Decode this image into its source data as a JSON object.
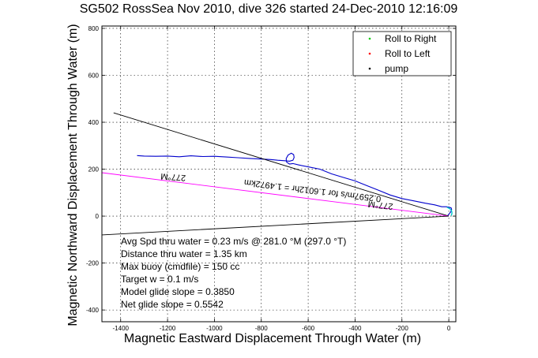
{
  "chart_data": {
    "type": "line",
    "title": "SG502 RossSea Nov 2010, dive 326 started 24-Dec-2010 12:16:09",
    "xlabel": "Magnetic Eastward Displacement Through Water (m)",
    "ylabel": "Magnetic Northward Displacement Through Water (m)",
    "xlim": [
      -1480,
      30
    ],
    "ylim": [
      -450,
      810
    ],
    "xticks": [
      -1400,
      -1200,
      -1000,
      -800,
      -600,
      -400,
      -200,
      0
    ],
    "yticks": [
      -400,
      -200,
      0,
      200,
      400,
      600,
      800
    ],
    "grid": true,
    "legend_position": "top-right",
    "legend": [
      {
        "name": "Roll to Right",
        "color": "#00cc00"
      },
      {
        "name": "Roll to Left",
        "color": "#ff0000"
      },
      {
        "name": "pump",
        "color": "#000000"
      }
    ],
    "series": [
      {
        "color": "#0000cc",
        "x": [
          -1330,
          -1300,
          -1250,
          -1200,
          -1150,
          -1100,
          -1050,
          -1000,
          -950,
          -900,
          -850,
          -800,
          -760,
          -730,
          -700,
          -680,
          -665,
          -660,
          -662,
          -672,
          -686,
          -694,
          -692,
          -680,
          -665,
          -640,
          -600,
          -550,
          -500,
          -450,
          -400,
          -350,
          -300,
          -250,
          -200,
          -150,
          -100,
          -60,
          -30,
          -10,
          2,
          10,
          12,
          8,
          0,
          -5
        ],
        "y": [
          258,
          256,
          255,
          256,
          253,
          257,
          254,
          255,
          252,
          249,
          246,
          243,
          241,
          238,
          236,
          234,
          238,
          250,
          262,
          268,
          260,
          245,
          230,
          222,
          224,
          218,
          210,
          200,
          180,
          165,
          150,
          130,
          110,
          90,
          75,
          65,
          55,
          48,
          40,
          40,
          38,
          35,
          28,
          18,
          8,
          2
        ]
      },
      {
        "color": "#000000",
        "x": [
          -1430,
          0
        ],
        "y": [
          440,
          0
        ]
      },
      {
        "color": "#ff00ff",
        "x": [
          -1480,
          0
        ],
        "y": [
          185,
          0
        ]
      },
      {
        "color": "#000000",
        "x": [
          -1480,
          0
        ],
        "y": [
          -80,
          0
        ]
      }
    ],
    "annotations": [
      "277°M",
      "277°M",
      "0.2597m/s for 1.6012hr = 1.4972km"
    ],
    "info_lines": [
      "Avg Spd thru water =  0.23 m/s @ 281.0   °M (297.0 °T)",
      "Distance thru water =  1.35 km",
      "Max buoy (cmdfile) = 150 cc",
      "Target w = 0.1 m/s",
      "Model glide slope = 0.3850",
      "Net glide slope = 0.5542"
    ]
  }
}
